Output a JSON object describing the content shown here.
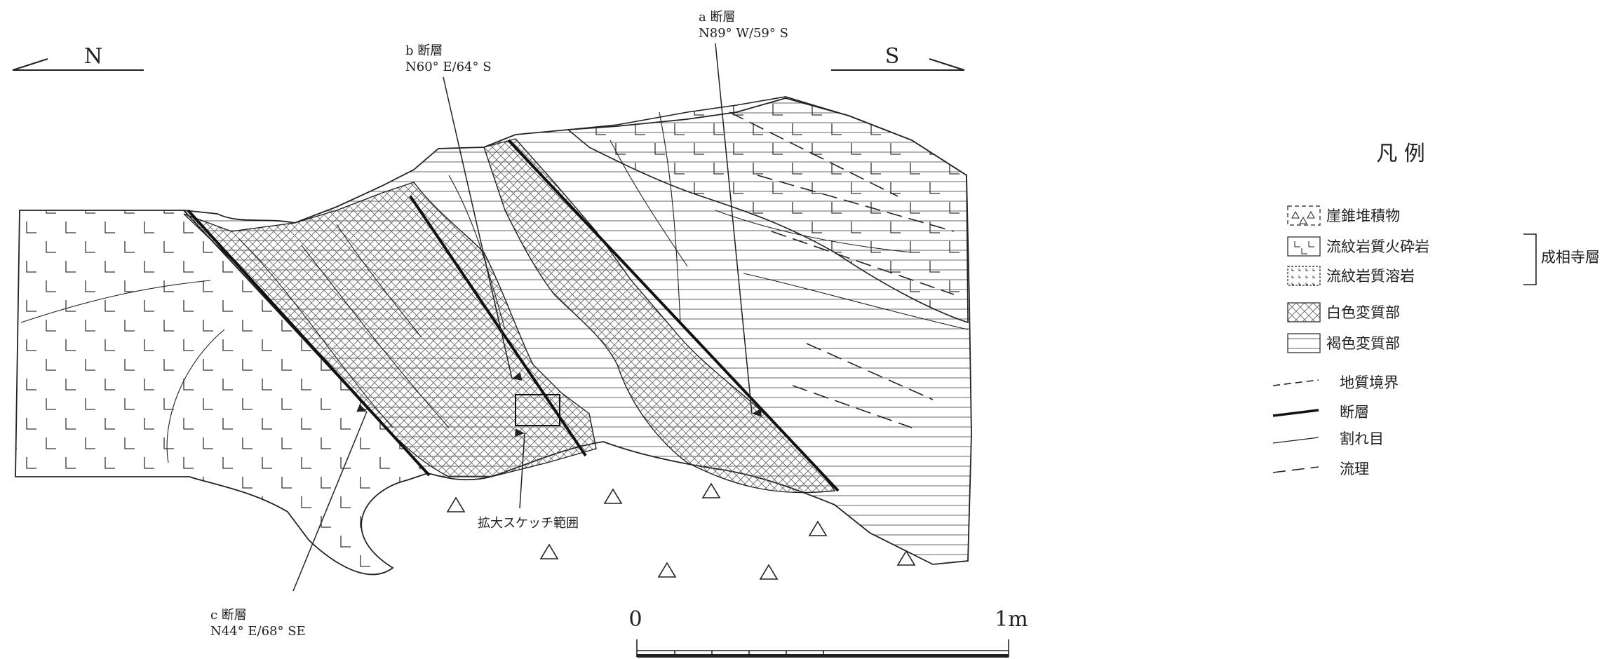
{
  "orientation": {
    "north": "N",
    "south": "S"
  },
  "faults": {
    "a": {
      "name": "a 断層",
      "attitude": "N89° W/59° S"
    },
    "b": {
      "name": "b 断層",
      "attitude": "N60° E/64° S"
    },
    "c": {
      "name": "c 断層",
      "attitude": "N44° E/68° SE"
    }
  },
  "callout": "拡大スケッチ範囲",
  "scale": {
    "zero": "0",
    "end": "1m"
  },
  "legend": {
    "title": "凡 例",
    "group_label": "成相寺層",
    "units": [
      {
        "symbol": "talus",
        "label": "崖錐堆積物"
      },
      {
        "symbol": "pyroclastic",
        "label": "流紋岩質火砕岩"
      },
      {
        "symbol": "lava",
        "label": "流紋岩質溶岩"
      },
      {
        "symbol": "white-alteration",
        "label": "白色変質部"
      },
      {
        "symbol": "brown-alteration",
        "label": "褐色変質部"
      }
    ],
    "lines": [
      {
        "symbol": "geologic-boundary",
        "label": "地質境界"
      },
      {
        "symbol": "fault",
        "label": "断層"
      },
      {
        "symbol": "fracture",
        "label": "割れ目"
      },
      {
        "symbol": "flow-structure",
        "label": "流理"
      }
    ]
  },
  "colors": {
    "ink": "#222222",
    "background": "#ffffff"
  }
}
